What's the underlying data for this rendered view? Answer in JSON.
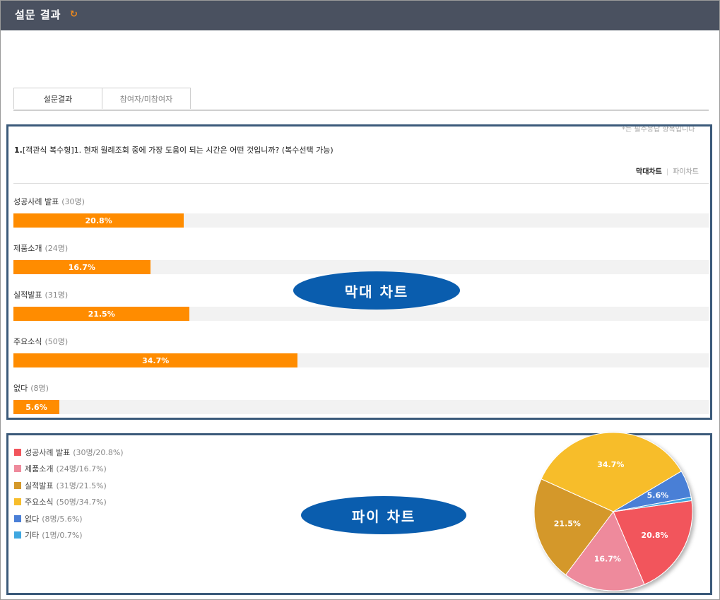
{
  "header": {
    "title": "설문 결과",
    "refresh_icon": "refresh-icon",
    "refresh_glyph": "↻"
  },
  "tabs": [
    {
      "label": "설문결과",
      "active": true
    },
    {
      "label": "참여자/미참여자",
      "active": false
    }
  ],
  "note": "*는 필수응답 항목입니다",
  "question": {
    "number": "1.",
    "text": "[객관식 복수형]1. 현재 월례조회 중에 가장 도움이 되는 시간은 어떤 것입니까? (복수선택 가능)"
  },
  "chart_toggle": {
    "bar": "막대차트",
    "separator": "|",
    "pie": "파이차트"
  },
  "callouts": {
    "bar": "막대 차트",
    "pie": "파이 차트"
  },
  "colors": {
    "bar": "#ff8c00",
    "header": "#4a5160",
    "callout": "#0a5dae",
    "box_border": "#3b5a7a"
  },
  "bar_items": [
    {
      "name": "성공사례 발표",
      "count": "(30명)",
      "percent_label": "20.8%",
      "percent": 20.8
    },
    {
      "name": "제품소개",
      "count": "(24명)",
      "percent_label": "16.7%",
      "percent": 16.7
    },
    {
      "name": "실적발표",
      "count": "(31명)",
      "percent_label": "21.5%",
      "percent": 21.5
    },
    {
      "name": "주요소식",
      "count": "(50명)",
      "percent_label": "34.7%",
      "percent": 34.7
    },
    {
      "name": "없다",
      "count": "(8명)",
      "percent_label": "5.6%",
      "percent": 5.6
    }
  ],
  "chart_data": {
    "type": "pie",
    "categories": [
      "성공사례 발표",
      "제품소개",
      "실적발표",
      "주요소식",
      "없다",
      "기타"
    ],
    "values": [
      20.8,
      16.7,
      21.5,
      34.7,
      5.6,
      0.7
    ],
    "counts": [
      30,
      24,
      31,
      50,
      8,
      1
    ],
    "slice_labels": [
      "20.8%",
      "16.7%",
      "21.5%",
      "34.7%",
      "5.6%",
      ""
    ],
    "colors": [
      "#f2545b",
      "#ee8a9c",
      "#d4982a",
      "#f7bd2b",
      "#4a7fd6",
      "#3fa7e0"
    ],
    "legend": [
      {
        "name": "성공사례 발표",
        "detail": "(30명/20.8%)"
      },
      {
        "name": "제품소개",
        "detail": "(24명/16.7%)"
      },
      {
        "name": "실적발표",
        "detail": "(31명/21.5%)"
      },
      {
        "name": "주요소식",
        "detail": "(50명/34.7%)"
      },
      {
        "name": "없다",
        "detail": "(8명/5.6%)"
      },
      {
        "name": "기타",
        "detail": "(1명/0.7%)"
      }
    ],
    "legend_position": "left"
  }
}
